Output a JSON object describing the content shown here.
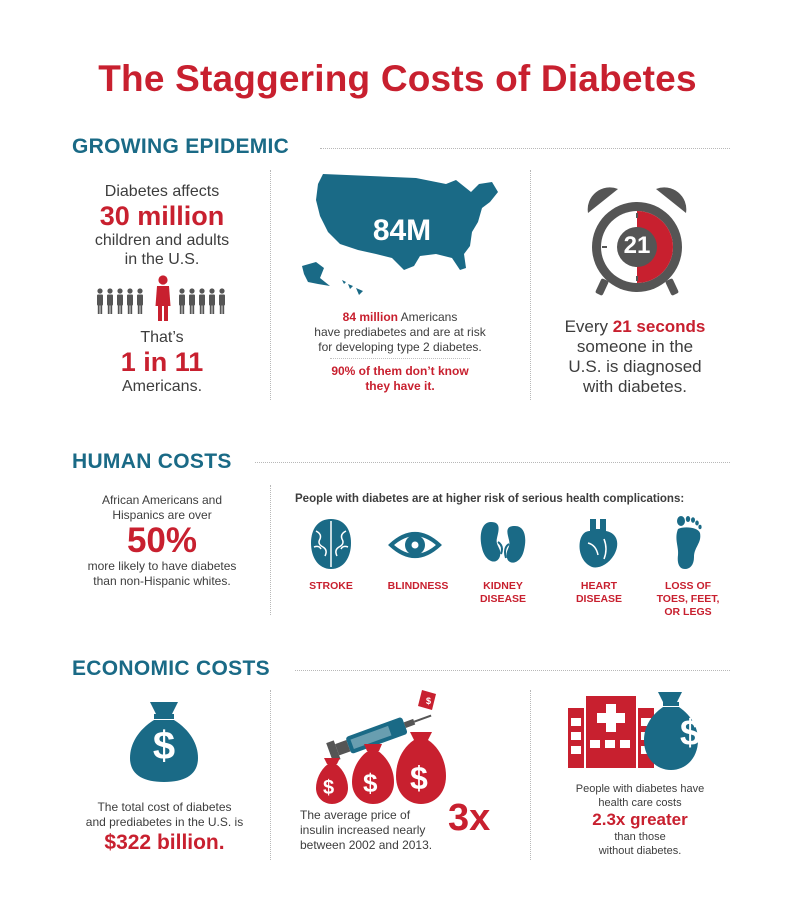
{
  "title": "The Staggering Costs of Diabetes",
  "sections": {
    "epidemic": "GROWING EPIDEMIC",
    "human": "HUMAN COSTS",
    "economic": "ECONOMIC COSTS"
  },
  "epidemic": {
    "affects_line1": "Diabetes affects",
    "affects_big": "30 million",
    "affects_line3": "children and adults",
    "affects_line4": "in the U.S.",
    "thats": "That’s",
    "ratio": "1 in 11",
    "americans": "Americans.",
    "map_number": "84M",
    "prediabetes_bold": "84 million",
    "prediabetes_rest": " Americans",
    "prediabetes_line2": "have prediabetes and are at risk",
    "prediabetes_line3": "for developing type 2 diabetes.",
    "dont_know_line1": "90% of them don’t know",
    "dont_know_line2": "they have it.",
    "clock_number": "21",
    "every": "Every ",
    "seconds": "21 seconds",
    "someone_line2": "someone in the",
    "someone_line3": "U.S. is diagnosed",
    "someone_line4": "with diabetes."
  },
  "human": {
    "african_line1": "African Americans and",
    "african_line2": "Hispanics are over",
    "percent": "50%",
    "african_line4": "more likely to have diabetes",
    "african_line5": "than non-Hispanic whites.",
    "risk_heading": "People with diabetes are at higher risk of serious health complications:",
    "complications": [
      {
        "line1": "STROKE",
        "line2": "",
        "line3": "",
        "icon": "brain-icon"
      },
      {
        "line1": "BLINDNESS",
        "line2": "",
        "line3": "",
        "icon": "eye-icon"
      },
      {
        "line1": "KIDNEY",
        "line2": "DISEASE",
        "line3": "",
        "icon": "kidney-icon"
      },
      {
        "line1": "HEART",
        "line2": "DISEASE",
        "line3": "",
        "icon": "heart-icon"
      },
      {
        "line1": "LOSS OF",
        "line2": "TOES, FEET,",
        "line3": "OR LEGS",
        "icon": "foot-icon"
      }
    ]
  },
  "economic": {
    "total_line1": "The total cost of diabetes",
    "total_line2": "and prediabetes in the U.S. is",
    "total_big": "$322 billion.",
    "insulin_line1": "The average price of",
    "insulin_line2": "insulin increased nearly",
    "insulin_line3": "between 2002 and 2013.",
    "insulin_big": "3x",
    "care_line1": "People with diabetes have",
    "care_line2": "health care costs",
    "care_big": "2.3x greater",
    "care_line4": "than those",
    "care_line5": "without diabetes.",
    "dollar": "$"
  },
  "colors": {
    "red": "#c8202f",
    "teal": "#1a6a86",
    "gray": "#555555"
  }
}
